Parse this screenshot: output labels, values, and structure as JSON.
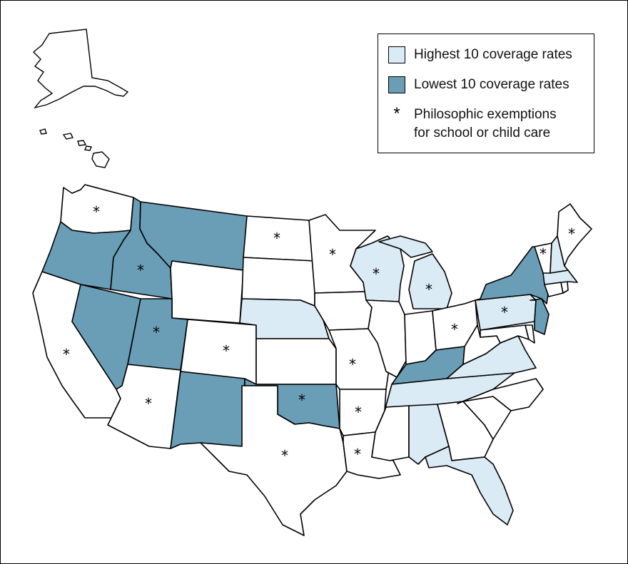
{
  "legend": {
    "highest_label": "Highest 10 coverage rates",
    "lowest_label": "Lowest 10 coverage rates",
    "exemption_symbol": "*",
    "exemption_line1": "Philosophic exemptions",
    "exemption_line2": "for school or child care"
  },
  "colors": {
    "highest": "#daebf5",
    "lowest": "#6a9db6",
    "other": "#ffffff"
  },
  "states": {
    "highest": [
      "Wisconsin",
      "Michigan",
      "Pennsylvania",
      "Virginia",
      "Tennessee",
      "Alabama",
      "Florida",
      "Nebraska",
      "New Hampshire",
      "Massachusetts"
    ],
    "lowest": [
      "Oregon",
      "Idaho",
      "Montana",
      "Nevada",
      "Utah",
      "New Mexico",
      "Oklahoma",
      "Kentucky",
      "New York",
      "New Jersey"
    ],
    "philosophic_exemptions": [
      "Washington",
      "Idaho",
      "North Dakota",
      "Minnesota",
      "Wisconsin",
      "Michigan",
      "Ohio",
      "Pennsylvania",
      "Vermont",
      "Maine",
      "California",
      "Utah",
      "Colorado",
      "Arizona",
      "Texas",
      "Oklahoma",
      "Missouri",
      "Arkansas",
      "Louisiana"
    ]
  }
}
